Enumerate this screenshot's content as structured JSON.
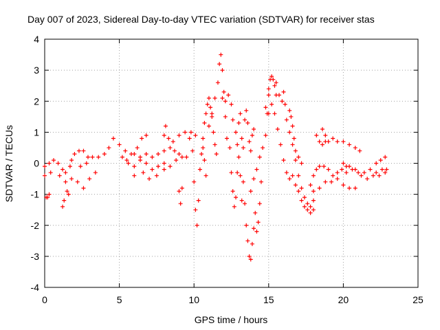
{
  "chart_data": {
    "type": "scatter",
    "title": "Day 007 of 2023, Sidereal Day-to-day VTEC variation (SDTVAR) for receiver stas",
    "xlabel": "GPS time / hours",
    "ylabel": "SDTVAR / TECUs",
    "xlim": [
      0,
      25
    ],
    "ylim": [
      -4,
      4
    ],
    "x_ticks": [
      "0",
      "5",
      "10",
      "15",
      "20",
      "25"
    ],
    "y_ticks": [
      "-4",
      "-3",
      "-2",
      "-1",
      "0",
      "1",
      "2",
      "3",
      "4"
    ],
    "grid": true,
    "marker": "+",
    "series": [
      {
        "name": "SDTVAR",
        "color": "#ff0000",
        "points": [
          [
            0.0,
            -0.4
          ],
          [
            0.1,
            -1.1
          ],
          [
            0.2,
            -1.1
          ],
          [
            0.3,
            -1.0
          ],
          [
            0.4,
            -0.3
          ],
          [
            0.0,
            -0.1
          ],
          [
            0.3,
            0.0
          ],
          [
            0.6,
            0.1
          ],
          [
            0.9,
            0.0
          ],
          [
            1.2,
            -0.2
          ],
          [
            1.4,
            -0.6
          ],
          [
            1.6,
            -1.0
          ],
          [
            1.2,
            -1.4
          ],
          [
            1.3,
            -1.2
          ],
          [
            1.5,
            -0.9
          ],
          [
            1.0,
            -0.4
          ],
          [
            1.4,
            -0.3
          ],
          [
            1.8,
            -0.5
          ],
          [
            2.2,
            -0.6
          ],
          [
            2.6,
            -0.8
          ],
          [
            3.0,
            -0.5
          ],
          [
            3.4,
            -0.3
          ],
          [
            1.7,
            -0.1
          ],
          [
            2.0,
            0.3
          ],
          [
            2.3,
            0.4
          ],
          [
            2.6,
            0.4
          ],
          [
            2.9,
            0.2
          ],
          [
            1.8,
            0.1
          ],
          [
            2.4,
            -0.1
          ],
          [
            2.8,
            0.0
          ],
          [
            3.2,
            0.2
          ],
          [
            3.6,
            0.2
          ],
          [
            4.0,
            0.3
          ],
          [
            4.3,
            0.5
          ],
          [
            4.6,
            0.8
          ],
          [
            5.0,
            0.6
          ],
          [
            5.4,
            0.4
          ],
          [
            5.8,
            0.3
          ],
          [
            6.2,
            0.5
          ],
          [
            6.5,
            0.8
          ],
          [
            6.8,
            0.9
          ],
          [
            5.2,
            0.2
          ],
          [
            5.6,
            0.0
          ],
          [
            6.0,
            -0.1
          ],
          [
            6.4,
            0.1
          ],
          [
            6.8,
            0.3
          ],
          [
            7.2,
            0.2
          ],
          [
            7.6,
            0.3
          ],
          [
            8.0,
            0.4
          ],
          [
            8.4,
            0.5
          ],
          [
            8.7,
            0.4
          ],
          [
            9.0,
            0.3
          ],
          [
            5.5,
            0.1
          ],
          [
            6.0,
            0.3
          ],
          [
            6.4,
            0.2
          ],
          [
            6.8,
            0.0
          ],
          [
            7.2,
            -0.2
          ],
          [
            7.6,
            -0.1
          ],
          [
            8.0,
            0.0
          ],
          [
            8.4,
            -0.1
          ],
          [
            8.8,
            0.1
          ],
          [
            9.2,
            0.2
          ],
          [
            6.0,
            -0.4
          ],
          [
            6.6,
            -0.3
          ],
          [
            7.0,
            -0.5
          ],
          [
            7.5,
            -0.4
          ],
          [
            8.0,
            -0.2
          ],
          [
            8.0,
            0.9
          ],
          [
            8.1,
            1.2
          ],
          [
            8.3,
            0.8
          ],
          [
            8.6,
            0.7
          ],
          [
            9.0,
            0.9
          ],
          [
            9.4,
            1.0
          ],
          [
            9.8,
            1.0
          ],
          [
            10.1,
            0.9
          ],
          [
            9.0,
            -0.9
          ],
          [
            9.1,
            -1.3
          ],
          [
            9.2,
            -0.8
          ],
          [
            9.5,
            0.2
          ],
          [
            9.7,
            0.8
          ],
          [
            9.9,
            0.4
          ],
          [
            10.0,
            -0.6
          ],
          [
            10.1,
            -1.5
          ],
          [
            10.2,
            -2.0
          ],
          [
            10.3,
            -1.2
          ],
          [
            10.4,
            -0.2
          ],
          [
            10.5,
            0.3
          ],
          [
            10.6,
            0.5
          ],
          [
            10.7,
            0.1
          ],
          [
            10.8,
            -0.4
          ],
          [
            10.6,
            0.8
          ],
          [
            10.7,
            1.3
          ],
          [
            10.8,
            1.6
          ],
          [
            10.9,
            1.9
          ],
          [
            11.0,
            2.1
          ],
          [
            11.1,
            1.8
          ],
          [
            11.2,
            1.5
          ],
          [
            11.3,
            1.0
          ],
          [
            11.4,
            0.6
          ],
          [
            11.5,
            0.3
          ],
          [
            11.0,
            1.2
          ],
          [
            11.2,
            1.6
          ],
          [
            11.4,
            2.1
          ],
          [
            11.6,
            2.6
          ],
          [
            11.7,
            3.2
          ],
          [
            11.8,
            3.5
          ],
          [
            11.9,
            3.0
          ],
          [
            12.0,
            2.3
          ],
          [
            12.1,
            1.5
          ],
          [
            12.2,
            0.8
          ],
          [
            11.9,
            2.1
          ],
          [
            12.1,
            2.0
          ],
          [
            12.3,
            2.2
          ],
          [
            12.5,
            1.9
          ],
          [
            12.6,
            1.4
          ],
          [
            12.8,
            1.0
          ],
          [
            12.9,
            0.6
          ],
          [
            13.0,
            1.3
          ],
          [
            13.1,
            1.6
          ],
          [
            12.4,
            0.5
          ],
          [
            12.5,
            -0.3
          ],
          [
            12.6,
            -0.9
          ],
          [
            12.7,
            -1.4
          ],
          [
            12.8,
            -1.1
          ],
          [
            12.9,
            -0.3
          ],
          [
            13.0,
            0.2
          ],
          [
            13.1,
            -0.4
          ],
          [
            13.2,
            -1.2
          ],
          [
            13.2,
            0.8
          ],
          [
            13.3,
            0.5
          ],
          [
            13.4,
            1.4
          ],
          [
            13.5,
            1.7
          ],
          [
            13.6,
            1.3
          ],
          [
            13.7,
            0.7
          ],
          [
            13.8,
            0.4
          ],
          [
            13.9,
            0.9
          ],
          [
            14.0,
            1.1
          ],
          [
            13.3,
            -0.6
          ],
          [
            13.4,
            -1.3
          ],
          [
            13.5,
            -2.0
          ],
          [
            13.6,
            -2.5
          ],
          [
            13.7,
            -3.0
          ],
          [
            13.8,
            -3.1
          ],
          [
            13.9,
            -2.6
          ],
          [
            14.0,
            -2.1
          ],
          [
            14.1,
            -1.6
          ],
          [
            14.2,
            -2.2
          ],
          [
            14.3,
            -1.9
          ],
          [
            14.4,
            -1.3
          ],
          [
            14.5,
            -0.6
          ],
          [
            13.8,
            -0.9
          ],
          [
            14.0,
            -0.5
          ],
          [
            14.2,
            -0.2
          ],
          [
            14.4,
            0.2
          ],
          [
            14.6,
            0.5
          ],
          [
            14.8,
            0.9
          ],
          [
            14.9,
            1.6
          ],
          [
            15.0,
            2.2
          ],
          [
            14.8,
            1.8
          ],
          [
            15.0,
            2.4
          ],
          [
            15.1,
            2.7
          ],
          [
            15.2,
            2.8
          ],
          [
            15.3,
            2.7
          ],
          [
            15.4,
            2.5
          ],
          [
            15.5,
            2.2
          ],
          [
            15.0,
            1.6
          ],
          [
            15.2,
            1.9
          ],
          [
            15.4,
            1.6
          ],
          [
            15.6,
            1.1
          ],
          [
            15.8,
            0.6
          ],
          [
            16.0,
            0.1
          ],
          [
            16.2,
            -0.3
          ],
          [
            16.4,
            -0.5
          ],
          [
            15.5,
            2.6
          ],
          [
            15.7,
            2.2
          ],
          [
            15.9,
            2.0
          ],
          [
            16.0,
            2.3
          ],
          [
            16.1,
            1.9
          ],
          [
            16.2,
            1.4
          ],
          [
            16.4,
            1.0
          ],
          [
            16.6,
            0.6
          ],
          [
            16.8,
            0.1
          ],
          [
            17.0,
            -0.4
          ],
          [
            17.2,
            -0.8
          ],
          [
            17.4,
            -1.1
          ],
          [
            17.6,
            -1.3
          ],
          [
            17.8,
            -1.4
          ],
          [
            18.0,
            -1.2
          ],
          [
            16.6,
            -0.4
          ],
          [
            16.8,
            -0.7
          ],
          [
            17.0,
            -0.9
          ],
          [
            17.2,
            -1.2
          ],
          [
            17.4,
            -1.4
          ],
          [
            17.6,
            -1.5
          ],
          [
            17.8,
            -1.6
          ],
          [
            18.0,
            -1.5
          ],
          [
            17.8,
            -0.7
          ],
          [
            18.0,
            -0.4
          ],
          [
            18.2,
            -0.2
          ],
          [
            18.4,
            -0.1
          ],
          [
            18.7,
            -0.1
          ],
          [
            19.0,
            -0.2
          ],
          [
            19.3,
            -0.4
          ],
          [
            19.6,
            -0.3
          ],
          [
            19.9,
            -0.2
          ],
          [
            20.2,
            -0.1
          ],
          [
            18.0,
            -0.9
          ],
          [
            18.4,
            -0.8
          ],
          [
            18.8,
            -0.6
          ],
          [
            19.2,
            -0.6
          ],
          [
            19.6,
            -0.5
          ],
          [
            20.0,
            -0.7
          ],
          [
            20.4,
            -0.8
          ],
          [
            20.8,
            -0.8
          ],
          [
            20.2,
            -0.3
          ],
          [
            20.6,
            -0.2
          ],
          [
            21.0,
            -0.3
          ],
          [
            21.4,
            -0.3
          ],
          [
            21.8,
            -0.2
          ],
          [
            22.2,
            -0.3
          ],
          [
            22.6,
            -0.2
          ],
          [
            22.9,
            -0.2
          ],
          [
            20.0,
            0.0
          ],
          [
            20.4,
            -0.1
          ],
          [
            20.8,
            -0.2
          ],
          [
            21.2,
            -0.4
          ],
          [
            21.6,
            -0.5
          ],
          [
            22.0,
            -0.4
          ],
          [
            22.4,
            -0.4
          ],
          [
            22.8,
            -0.3
          ],
          [
            18.6,
            1.1
          ],
          [
            18.8,
            0.9
          ],
          [
            19.0,
            0.7
          ],
          [
            19.3,
            0.8
          ],
          [
            19.6,
            0.7
          ],
          [
            20.0,
            0.7
          ],
          [
            20.4,
            0.6
          ],
          [
            20.8,
            0.5
          ],
          [
            21.1,
            0.4
          ],
          [
            18.2,
            0.9
          ],
          [
            18.4,
            0.7
          ],
          [
            18.6,
            0.6
          ],
          [
            18.8,
            0.7
          ],
          [
            22.2,
            0.0
          ],
          [
            22.5,
            0.1
          ],
          [
            22.8,
            0.2
          ],
          [
            16.4,
            1.7
          ],
          [
            16.5,
            1.5
          ],
          [
            16.6,
            1.2
          ],
          [
            16.7,
            0.8
          ],
          [
            16.8,
            0.4
          ],
          [
            17.0,
            0.2
          ],
          [
            17.2,
            0.0
          ]
        ]
      }
    ]
  }
}
